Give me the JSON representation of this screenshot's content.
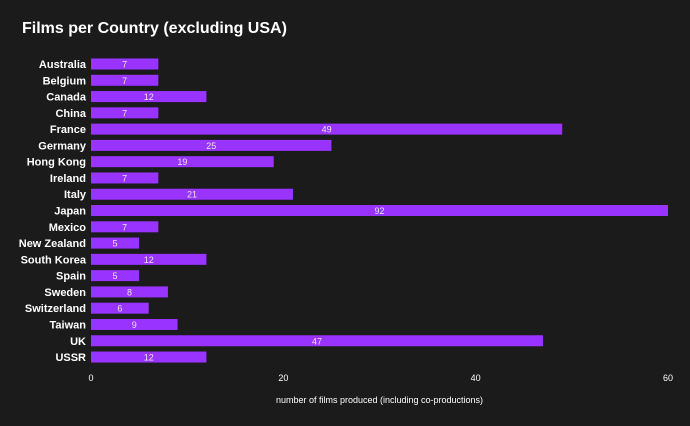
{
  "chart_data": {
    "type": "bar",
    "orientation": "horizontal",
    "title": "Films per Country (excluding USA)",
    "xlabel": "number of films produced (including co-productions)",
    "ylabel": "",
    "categories": [
      "Australia",
      "Belgium",
      "Canada",
      "China",
      "France",
      "Germany",
      "Hong Kong",
      "Ireland",
      "Italy",
      "Japan",
      "Mexico",
      "New Zealand",
      "South Korea",
      "Spain",
      "Sweden",
      "Switzerland",
      "Taiwan",
      "UK",
      "USSR"
    ],
    "values": [
      7,
      7,
      12,
      7,
      49,
      25,
      19,
      7,
      21,
      92,
      7,
      5,
      12,
      5,
      8,
      6,
      9,
      47,
      12
    ],
    "data_labels": [
      "7",
      "7",
      "12",
      "7",
      "49",
      "25",
      "19",
      "7",
      "21",
      "92",
      "7",
      "5",
      "12",
      "5",
      "8",
      "6",
      "9",
      "47",
      "12"
    ],
    "xlim": [
      0,
      60
    ],
    "xticks": [
      0,
      20,
      40,
      60
    ],
    "xtick_labels": [
      "0",
      "20",
      "40",
      "60"
    ],
    "grid": false,
    "legend": "none",
    "colors": {
      "background": "#1c1b1c",
      "bar": "#9933ff",
      "text": "#ffffff",
      "label": "#e6e6e6"
    }
  }
}
